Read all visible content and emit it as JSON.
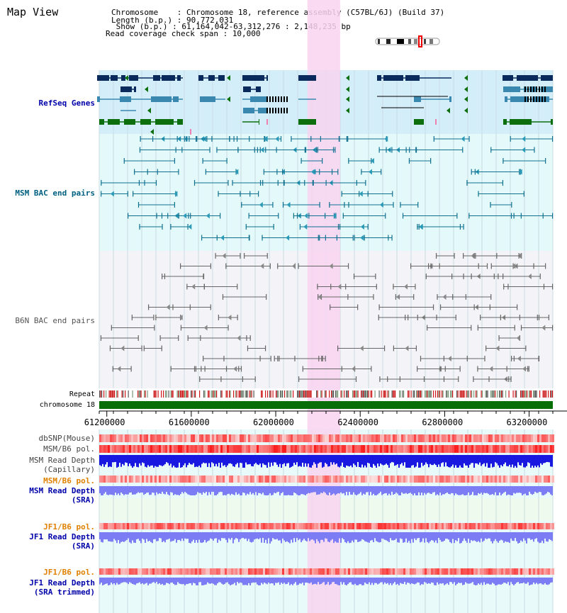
{
  "view_title": "Map View",
  "info": {
    "chromosome_key": "Chromosome    : ",
    "chromosome_val": "Chromosome 18, reference assembly (C57BL/6J) (Build 37)",
    "length_key": "Length (b.p.) : ",
    "length_val": "90,772,031",
    "show_key": " Show (b.p.) : ",
    "show_val": "61,164,042-63,312,276 : 2,148,235 bp",
    "coverage_key": "Read coverage check span : ",
    "coverage_val": "10,000"
  },
  "tracks": {
    "refseq": "RefSeq Genes",
    "msm_bac": "MSM BAC end pairs",
    "b6n_bac": "B6N BAC end pairs",
    "repeat": "Repeat",
    "chromosome": "chromosome 18",
    "dbsnp": "dbSNP(Mouse)",
    "msm_b6_pol": "MSM/B6 pol.",
    "msm_depth_cap_1": "MSM Read Depth",
    "msm_depth_cap_2": "(Capillary)",
    "msm_b6_pol2": "MSM/B6 pol.",
    "msm_depth_sra_1": "MSM Read Depth",
    "msm_depth_sra_2": "(SRA)",
    "jf1_b6_pol": "JF1/B6 pol.",
    "jf1_depth_sra_1": "JF1 Read Depth",
    "jf1_depth_sra_2": "(SRA)",
    "jf1_b6_pol2": "JF1/B6 pol.",
    "jf1_depth_trim_1": "JF1 Read Depth",
    "jf1_depth_trim_2": "(SRA trimmed)"
  },
  "axis": {
    "ticks": [
      "61200000",
      "61600000",
      "62000000",
      "62400000",
      "62800000",
      "63200000"
    ],
    "tick_values": [
      61200000,
      61600000,
      62000000,
      62400000,
      62800000,
      63200000
    ],
    "start": 61164042,
    "end": 63312276
  },
  "highlight": {
    "start": 62150000,
    "end": 62305000,
    "color": "#f8d4f0"
  },
  "colors": {
    "refseq_bg": "#d4eef9",
    "msm_bg": "#e4fafa",
    "b6n_bg": "#f4f4f8",
    "navy": "#0a2a5e",
    "teal_gene": "#3a88b0",
    "green_gene": "#0c6e0c",
    "msm_line": "#107090",
    "b6n_line": "#666666",
    "depth_blue": "#1818e0",
    "depth_light": "#7c7cf4",
    "chrom_green": "#086e08",
    "label_blue": "#0000aa",
    "label_teal": "#006080",
    "label_orange": "#e08000"
  }
}
